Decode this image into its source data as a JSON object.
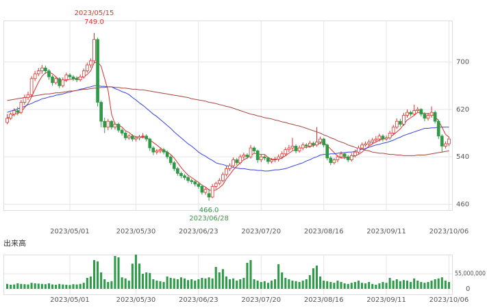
{
  "chart_data": {
    "type": "candlestick",
    "categories": [
      null,
      null,
      null,
      null,
      null,
      null,
      null,
      null,
      null,
      null,
      null,
      null,
      null,
      null,
      null,
      null,
      null,
      null,
      "2023/05/01",
      null,
      null,
      null,
      null,
      null,
      null,
      null,
      null,
      null,
      null,
      null,
      null,
      null,
      null,
      null,
      null,
      null,
      null,
      "2023/05/30",
      null,
      null,
      null,
      null,
      null,
      null,
      null,
      null,
      null,
      null,
      null,
      null,
      null,
      null,
      null,
      null,
      null,
      "2023/06/23",
      null,
      null,
      null,
      null,
      null,
      null,
      null,
      null,
      null,
      null,
      null,
      null,
      null,
      null,
      null,
      null,
      null,
      "2023/07/20",
      null,
      null,
      null,
      null,
      null,
      null,
      null,
      null,
      null,
      null,
      null,
      null,
      null,
      null,
      null,
      null,
      null,
      "2023/08/16",
      null,
      null,
      null,
      null,
      null,
      null,
      null,
      null,
      null,
      null,
      null,
      null,
      null,
      null,
      null,
      null,
      null,
      "2023/09/11",
      null,
      null,
      null,
      null,
      null,
      null,
      null,
      null,
      null,
      null,
      null,
      null,
      null,
      null,
      null,
      null,
      null,
      "2023/10/06"
    ],
    "ohlc": [
      [
        598,
        612,
        595,
        605
      ],
      [
        605,
        615,
        602,
        612
      ],
      [
        612,
        622,
        608,
        618
      ],
      [
        618,
        624,
        610,
        615
      ],
      [
        615,
        636,
        612,
        632
      ],
      [
        632,
        645,
        628,
        640
      ],
      [
        640,
        650,
        636,
        645
      ],
      [
        645,
        676,
        642,
        672
      ],
      [
        672,
        685,
        668,
        680
      ],
      [
        680,
        690,
        676,
        685
      ],
      [
        685,
        695,
        680,
        690
      ],
      [
        690,
        694,
        680,
        685
      ],
      [
        685,
        688,
        670,
        675
      ],
      [
        675,
        678,
        660,
        665
      ],
      [
        665,
        676,
        662,
        672
      ],
      [
        672,
        674,
        656,
        660
      ],
      [
        660,
        674,
        657,
        670
      ],
      [
        670,
        682,
        666,
        678
      ],
      [
        678,
        681,
        671,
        675
      ],
      [
        675,
        678,
        668,
        672
      ],
      [
        672,
        676,
        666,
        670
      ],
      [
        670,
        679,
        667,
        675
      ],
      [
        675,
        689,
        672,
        685
      ],
      [
        685,
        699,
        682,
        695
      ],
      [
        695,
        706,
        690,
        702
      ],
      [
        702,
        749,
        698,
        738
      ],
      [
        738,
        741,
        625,
        632
      ],
      [
        632,
        635,
        590,
        600
      ],
      [
        600,
        606,
        580,
        590
      ],
      [
        590,
        604,
        585,
        600
      ],
      [
        600,
        602,
        586,
        590
      ],
      [
        590,
        598,
        586,
        595
      ],
      [
        595,
        598,
        581,
        585
      ],
      [
        585,
        588,
        576,
        580
      ],
      [
        580,
        583,
        568,
        572
      ],
      [
        572,
        578,
        569,
        575
      ],
      [
        575,
        578,
        566,
        570
      ],
      [
        570,
        575,
        566,
        572
      ],
      [
        572,
        577,
        568,
        574
      ],
      [
        574,
        580,
        571,
        575
      ],
      [
        575,
        578,
        566,
        570
      ],
      [
        570,
        572,
        550,
        555
      ],
      [
        555,
        558,
        543,
        548
      ],
      [
        548,
        553,
        544,
        550
      ],
      [
        550,
        556,
        546,
        552
      ],
      [
        552,
        555,
        544,
        548
      ],
      [
        548,
        551,
        536,
        540
      ],
      [
        540,
        543,
        526,
        530
      ],
      [
        530,
        533,
        516,
        520
      ],
      [
        520,
        523,
        508,
        512
      ],
      [
        512,
        515,
        504,
        508
      ],
      [
        508,
        511,
        501,
        505
      ],
      [
        505,
        508,
        496,
        500
      ],
      [
        500,
        503,
        494,
        498
      ],
      [
        498,
        501,
        490,
        494
      ],
      [
        494,
        497,
        486,
        490
      ],
      [
        490,
        493,
        476,
        480
      ],
      [
        480,
        488,
        476,
        485
      ],
      [
        478,
        486,
        466,
        472
      ],
      [
        472,
        494,
        470,
        490
      ],
      [
        490,
        498,
        486,
        495
      ],
      [
        495,
        504,
        492,
        500
      ],
      [
        500,
        514,
        497,
        510
      ],
      [
        510,
        524,
        507,
        520
      ],
      [
        520,
        529,
        516,
        525
      ],
      [
        525,
        539,
        522,
        535
      ],
      [
        535,
        538,
        526,
        530
      ],
      [
        530,
        544,
        527,
        540
      ],
      [
        540,
        547,
        536,
        543
      ],
      [
        543,
        546,
        536,
        540
      ],
      [
        540,
        560,
        537,
        555
      ],
      [
        555,
        558,
        545,
        550
      ],
      [
        550,
        552,
        530,
        535
      ],
      [
        535,
        544,
        531,
        540
      ],
      [
        540,
        543,
        534,
        538
      ],
      [
        538,
        540,
        528,
        532
      ],
      [
        532,
        538,
        529,
        535
      ],
      [
        535,
        540,
        531,
        536
      ],
      [
        536,
        544,
        532,
        540
      ],
      [
        540,
        549,
        536,
        545
      ],
      [
        545,
        556,
        542,
        552
      ],
      [
        552,
        560,
        548,
        555
      ],
      [
        555,
        572,
        551,
        558
      ],
      [
        558,
        561,
        546,
        550
      ],
      [
        550,
        559,
        547,
        555
      ],
      [
        555,
        564,
        551,
        560
      ],
      [
        560,
        563,
        554,
        558
      ],
      [
        558,
        567,
        555,
        563
      ],
      [
        563,
        566,
        556,
        560
      ],
      [
        560,
        590,
        557,
        565
      ],
      [
        565,
        574,
        561,
        570
      ],
      [
        570,
        572,
        556,
        560
      ],
      [
        560,
        562,
        534,
        538
      ],
      [
        538,
        541,
        526,
        530
      ],
      [
        530,
        538,
        527,
        535
      ],
      [
        535,
        543,
        531,
        540
      ],
      [
        540,
        549,
        537,
        545
      ],
      [
        545,
        547,
        536,
        540
      ],
      [
        540,
        543,
        531,
        535
      ],
      [
        535,
        546,
        532,
        542
      ],
      [
        542,
        552,
        539,
        548
      ],
      [
        548,
        559,
        545,
        555
      ],
      [
        555,
        564,
        552,
        560
      ],
      [
        560,
        566,
        557,
        562
      ],
      [
        562,
        569,
        558,
        565
      ],
      [
        565,
        572,
        561,
        568
      ],
      [
        568,
        575,
        564,
        570
      ],
      [
        570,
        579,
        566,
        575
      ],
      [
        575,
        578,
        566,
        570
      ],
      [
        570,
        576,
        567,
        572
      ],
      [
        572,
        584,
        569,
        580
      ],
      [
        580,
        594,
        577,
        590
      ],
      [
        590,
        605,
        587,
        600
      ],
      [
        600,
        604,
        591,
        595
      ],
      [
        595,
        614,
        592,
        610
      ],
      [
        610,
        620,
        606,
        615
      ],
      [
        615,
        618,
        608,
        612
      ],
      [
        612,
        628,
        609,
        618
      ],
      [
        618,
        624,
        614,
        620
      ],
      [
        620,
        622,
        608,
        612
      ],
      [
        612,
        615,
        600,
        605
      ],
      [
        605,
        614,
        601,
        610
      ],
      [
        610,
        625,
        606,
        615
      ],
      [
        615,
        618,
        596,
        600
      ],
      [
        600,
        603,
        570,
        575
      ],
      [
        575,
        578,
        548,
        558
      ],
      [
        558,
        566,
        554,
        562
      ],
      [
        562,
        574,
        558,
        570
      ]
    ],
    "up_color": "#d9322b",
    "down_color": "#2e9a47",
    "moving_averages": [
      {
        "color": "#e02a2a",
        "values": [
          605,
          608,
          612,
          613,
          616,
          623,
          630,
          641,
          654,
          666,
          676,
          682,
          683,
          680,
          675,
          669,
          668,
          669,
          671,
          671,
          673,
          674,
          675,
          679,
          685,
          699,
          700,
          693,
          672,
          652,
          612,
          595,
          594,
          590,
          584,
          581,
          576,
          574,
          573,
          573,
          572,
          569,
          564,
          560,
          555,
          551,
          548,
          544,
          538,
          530,
          522,
          515,
          509,
          505,
          501,
          497,
          492,
          489,
          484,
          483,
          484,
          488,
          493,
          503,
          510,
          518,
          524,
          530,
          535,
          538,
          542,
          546,
          545,
          544,
          544,
          539,
          536,
          536,
          536,
          538,
          542,
          546,
          550,
          552,
          554,
          556,
          556,
          557,
          559,
          561,
          563,
          564,
          559,
          553,
          547,
          541,
          538,
          538,
          539,
          540,
          542,
          544,
          548,
          553,
          558,
          562,
          565,
          568,
          570,
          571,
          573,
          577,
          582,
          587,
          595,
          602,
          606,
          610,
          615,
          615,
          613,
          613,
          612,
          608,
          601,
          590,
          578,
          573
        ]
      },
      {
        "color": "#3340e0",
        "values": [
          615,
          617,
          619,
          621,
          623,
          625,
          628,
          630,
          633,
          635,
          638,
          639,
          641,
          642,
          644,
          645,
          646,
          648,
          649,
          651,
          652,
          654,
          655,
          657,
          658,
          660,
          660,
          659,
          659,
          658,
          658,
          655,
          653,
          650,
          648,
          645,
          640,
          636,
          631,
          627,
          622,
          617,
          612,
          608,
          603,
          598,
          593,
          588,
          582,
          577,
          572,
          567,
          562,
          558,
          553,
          548,
          544,
          541,
          537,
          534,
          530,
          528,
          527,
          525,
          524,
          522,
          521,
          520,
          520,
          519,
          518,
          518,
          517,
          517,
          516,
          516,
          517,
          518,
          518,
          519,
          520,
          522,
          524,
          526,
          528,
          530,
          533,
          535,
          538,
          540,
          543,
          544,
          544,
          545,
          545,
          546,
          547,
          547,
          548,
          548,
          549,
          551,
          553,
          554,
          556,
          558,
          560,
          561,
          563,
          564,
          566,
          568,
          571,
          573,
          576,
          578,
          580,
          582,
          584,
          586,
          588,
          588,
          589,
          589,
          590,
          590,
          590,
          590
        ]
      },
      {
        "color": "#a8403a",
        "values": [
          635,
          636,
          637,
          638,
          639,
          640,
          641,
          642,
          643,
          644,
          645,
          646,
          646,
          647,
          648,
          648,
          649,
          650,
          651,
          651,
          652,
          653,
          654,
          654,
          655,
          656,
          656,
          657,
          657,
          658,
          658,
          657,
          657,
          656,
          656,
          655,
          654,
          654,
          653,
          653,
          652,
          651,
          650,
          649,
          648,
          647,
          646,
          645,
          644,
          643,
          642,
          641,
          640,
          638,
          637,
          636,
          635,
          634,
          632,
          631,
          630,
          628,
          627,
          625,
          624,
          622,
          620,
          618,
          616,
          614,
          612,
          611,
          609,
          608,
          606,
          605,
          604,
          602,
          601,
          599,
          598,
          596,
          595,
          593,
          592,
          590,
          588,
          586,
          584,
          582,
          580,
          577,
          575,
          572,
          570,
          567,
          565,
          563,
          560,
          558,
          556,
          554,
          553,
          551,
          550,
          548,
          547,
          546,
          546,
          545,
          544,
          544,
          543,
          543,
          542,
          542,
          542,
          542,
          543,
          543,
          543,
          544,
          545,
          546,
          547,
          548,
          549,
          550
        ]
      }
    ],
    "ylim": [
      450,
      770
    ],
    "yticks": [
      460,
      540,
      620,
      700
    ],
    "grid": true,
    "annotations": [
      {
        "date": "2023/05/15",
        "value": 749,
        "label": "749.0"
      },
      {
        "date": "2023/06/28",
        "value": 466,
        "label": "466.0"
      }
    ],
    "volume": {
      "label": "出来高",
      "color": "#2e9a47",
      "ylim": [
        -20000000.0,
        125000000.0
      ],
      "yticks": [
        {
          "value": 55000000.0,
          "label": "55,000,000"
        },
        0
      ],
      "values": [
        18000000.0,
        15000000.0,
        16000000.0,
        20000000.0,
        18000000.0,
        17000000.0,
        16000000.0,
        22000000.0,
        20000000.0,
        19000000.0,
        18000000.0,
        17000000.0,
        20000000.0,
        16000000.0,
        15000000.0,
        18000000.0,
        16000000.0,
        15000000.0,
        14000000.0,
        17000000.0,
        16000000.0,
        18000000.0,
        22000000.0,
        40000000.0,
        45000000.0,
        105000000.0,
        100000000.0,
        60000000.0,
        35000000.0,
        25000000.0,
        28000000.0,
        120000000.0,
        115000000.0,
        42000000.0,
        38000000.0,
        30000000.0,
        92000000.0,
        125000000.0,
        92000000.0,
        55000000.0,
        60000000.0,
        58000000.0,
        35000000.0,
        30000000.0,
        28000000.0,
        25000000.0,
        45000000.0,
        40000000.0,
        38000000.0,
        35000000.0,
        42000000.0,
        38000000.0,
        32000000.0,
        35000000.0,
        30000000.0,
        35000000.0,
        40000000.0,
        38000000.0,
        42000000.0,
        38000000.0,
        80000000.0,
        60000000.0,
        72000000.0,
        45000000.0,
        35000000.0,
        38000000.0,
        30000000.0,
        35000000.0,
        40000000.0,
        95000000.0,
        105000000.0,
        35000000.0,
        30000000.0,
        25000000.0,
        28000000.0,
        22000000.0,
        30000000.0,
        35000000.0,
        90000000.0,
        60000000.0,
        40000000.0,
        35000000.0,
        30000000.0,
        28000000.0,
        25000000.0,
        30000000.0,
        35000000.0,
        50000000.0,
        75000000.0,
        85000000.0,
        45000000.0,
        30000000.0,
        28000000.0,
        25000000.0,
        22000000.0,
        30000000.0,
        25000000.0,
        20000000.0,
        18000000.0,
        22000000.0,
        25000000.0,
        30000000.0,
        22000000.0,
        20000000.0,
        25000000.0,
        18000000.0,
        15000000.0,
        20000000.0,
        25000000.0,
        22000000.0,
        40000000.0,
        30000000.0,
        35000000.0,
        28000000.0,
        32000000.0,
        30000000.0,
        25000000.0,
        38000000.0,
        30000000.0,
        25000000.0,
        22000000.0,
        25000000.0,
        30000000.0,
        35000000.0,
        38000000.0,
        42000000.0,
        30000000.0,
        25000000.0
      ]
    }
  }
}
